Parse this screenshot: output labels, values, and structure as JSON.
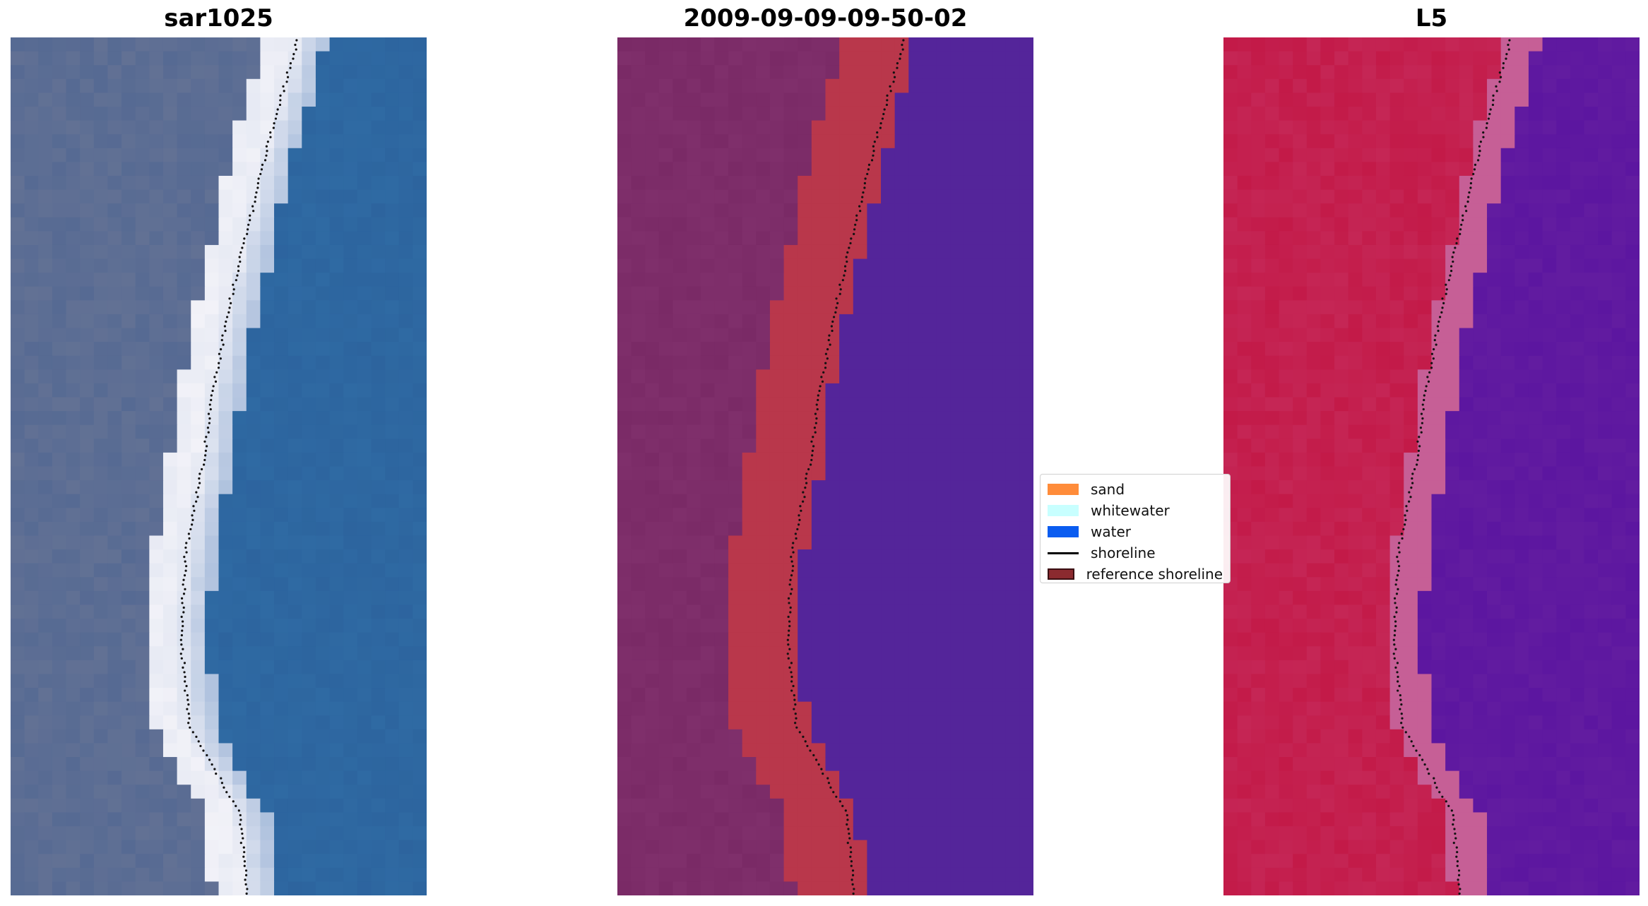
{
  "panels": [
    {
      "id": "rgb",
      "title": "sar1025"
    },
    {
      "id": "class",
      "title": "2009-09-09-09-50-02"
    },
    {
      "id": "index",
      "title": "L5"
    }
  ],
  "legend": {
    "items": [
      {
        "label": "sand",
        "color": "#ff8c3a",
        "kind": "patch"
      },
      {
        "label": "whitewater",
        "color": "#c8ffff",
        "kind": "patch"
      },
      {
        "label": "water",
        "color": "#0a5cf0",
        "kind": "patch"
      },
      {
        "label": "shoreline",
        "color": "#000000",
        "kind": "line"
      },
      {
        "label": "reference shoreline",
        "color": "#8b2a2f",
        "kind": "patch"
      }
    ]
  },
  "colors": {
    "land_rgb": "#566a93",
    "whitewater_rgb": "#f2f2f8",
    "water_rgb": "#2f6aa3",
    "class_land": "#7a2a66",
    "class_sand_band": "#b9374b",
    "class_water": "#54259a",
    "index_land": "#c31a48",
    "index_water": "#5c16a0",
    "shoreline_dots": "#111111"
  }
}
